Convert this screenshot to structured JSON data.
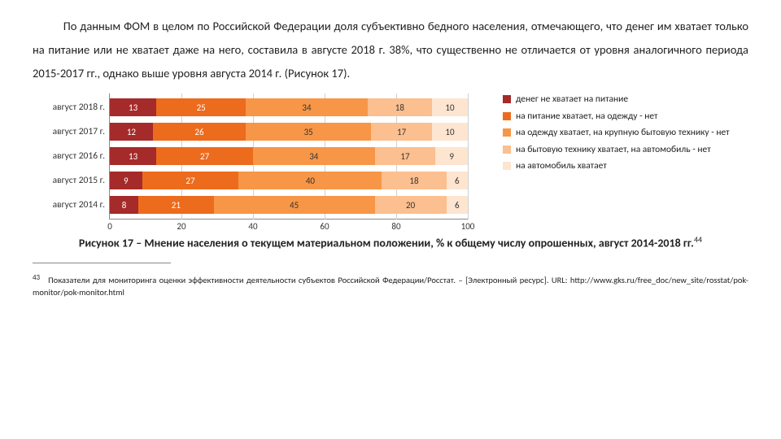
{
  "paragraph": "По данным ФОМ в целом по Российской Федерации доля субъективно бедного населения, отмечающего, что денег им хватает только на питание или не хватает даже на него, составила в августе 2018 г. 38%, что существенно не отличается от уровня аналогичного периода 2015-2017 гг., однако выше уровня августа 2014 г. (Рисунок 17).",
  "chart": {
    "type": "stacked-bar-horizontal",
    "x_max": 100,
    "xticks": [
      0,
      20,
      40,
      60,
      80,
      100
    ],
    "categories": [
      "август 2018 г.",
      "август 2017 г.",
      "август 2016 г.",
      "август 2015 г.",
      "август 2014 г."
    ],
    "series_colors": [
      "#a52a2a",
      "#ed6b1d",
      "#f79646",
      "#fcbf8f",
      "#fde5d0"
    ],
    "series_textcolors": [
      "#ffffff",
      "#ffffff",
      "#333333",
      "#333333",
      "#333333"
    ],
    "data": [
      [
        13,
        25,
        34,
        18,
        10
      ],
      [
        12,
        26,
        35,
        17,
        10
      ],
      [
        13,
        27,
        34,
        17,
        9
      ],
      [
        9,
        27,
        40,
        18,
        6
      ],
      [
        8,
        21,
        45,
        20,
        6
      ]
    ],
    "legend": [
      "денег не хватает на питание",
      "на питание хватает, на одежду - нет",
      "на одежду хватает, на крупную бытовую технику - нет",
      "на бытовую технику хватает, на автомобиль - нет",
      "на автомобиль хватает"
    ]
  },
  "caption_prefix": "Рисунок 17 – ",
  "caption_text": "Мнение населения о текущем материальном положении, % к общему числу опрошенных, август 2014-2018 гг.",
  "caption_footnote_marker": "44",
  "footnote_marker": "43",
  "footnote_text": "Показатели для мониторинга оценки эффективности деятельности субъектов Российской Федерации/Росстат. – [Электронный ресурс]. URL: http://www.gks.ru/free_doc/new_site/rosstat/pok-monitor/pok-monitor.html"
}
